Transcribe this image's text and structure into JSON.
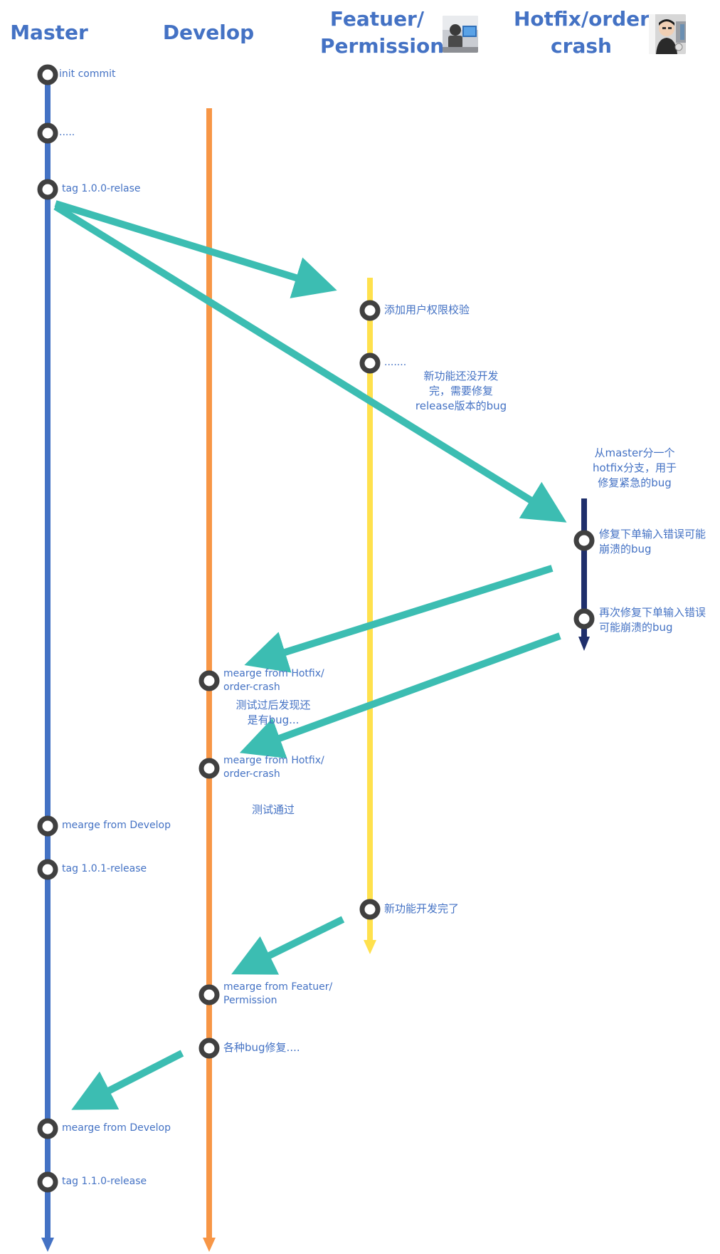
{
  "branches": {
    "master": {
      "title": "Master",
      "color": "#4472c4"
    },
    "develop": {
      "title": "Develop",
      "color": "#f79646"
    },
    "feature": {
      "title_line1": "Featuer/",
      "title_line2": "Permission",
      "color": "#ffe14d"
    },
    "hotfix": {
      "title_line1": "Hotfix/order-",
      "title_line2": "crash",
      "color": "#1f2f6b"
    }
  },
  "arrow_color": "#3cbdb2",
  "commits": {
    "master_init": "init commit",
    "master_dots": ".....",
    "master_tag_100": "tag 1.0.0-relase",
    "feature_add_check": "添加用户权限校验",
    "feature_dots": ".......",
    "hotfix_fix1_line1": "修复下单输入错误可能",
    "hotfix_fix1_line2": "崩溃的bug",
    "hotfix_fix2_line1": "再次修复下单输入错误",
    "hotfix_fix2_line2": "可能崩溃的bug",
    "develop_merge_hotfix1_line1": "mearge from Hotfix/",
    "develop_merge_hotfix1_line2": "order-crash",
    "develop_merge_hotfix2_line1": "mearge from Hotfix/",
    "develop_merge_hotfix2_line2": "order-crash",
    "master_merge_develop1": "mearge from Develop",
    "master_tag_101": "tag 1.0.1-release",
    "feature_done": "新功能开发完了",
    "develop_merge_feature_line1": "mearge from Featuer/",
    "develop_merge_feature_line2": "Permission",
    "develop_bugfixes": "各种bug修复....",
    "master_merge_develop2": "mearge from Develop",
    "master_tag_110": "tag 1.1.0-release"
  },
  "notes": {
    "feature_unfinished_line1": "新功能还没开发",
    "feature_unfinished_line2": "完，需要修复",
    "feature_unfinished_line3": "release版本的bug",
    "hotfix_branch_line1": "从master分一个",
    "hotfix_branch_line2": "hotfix分支，用于",
    "hotfix_branch_line3": "修复紧急的bug",
    "found_bug_line1": "测试过后发现还",
    "found_bug_line2": "是有bug...",
    "test_passed": "测试通过"
  }
}
